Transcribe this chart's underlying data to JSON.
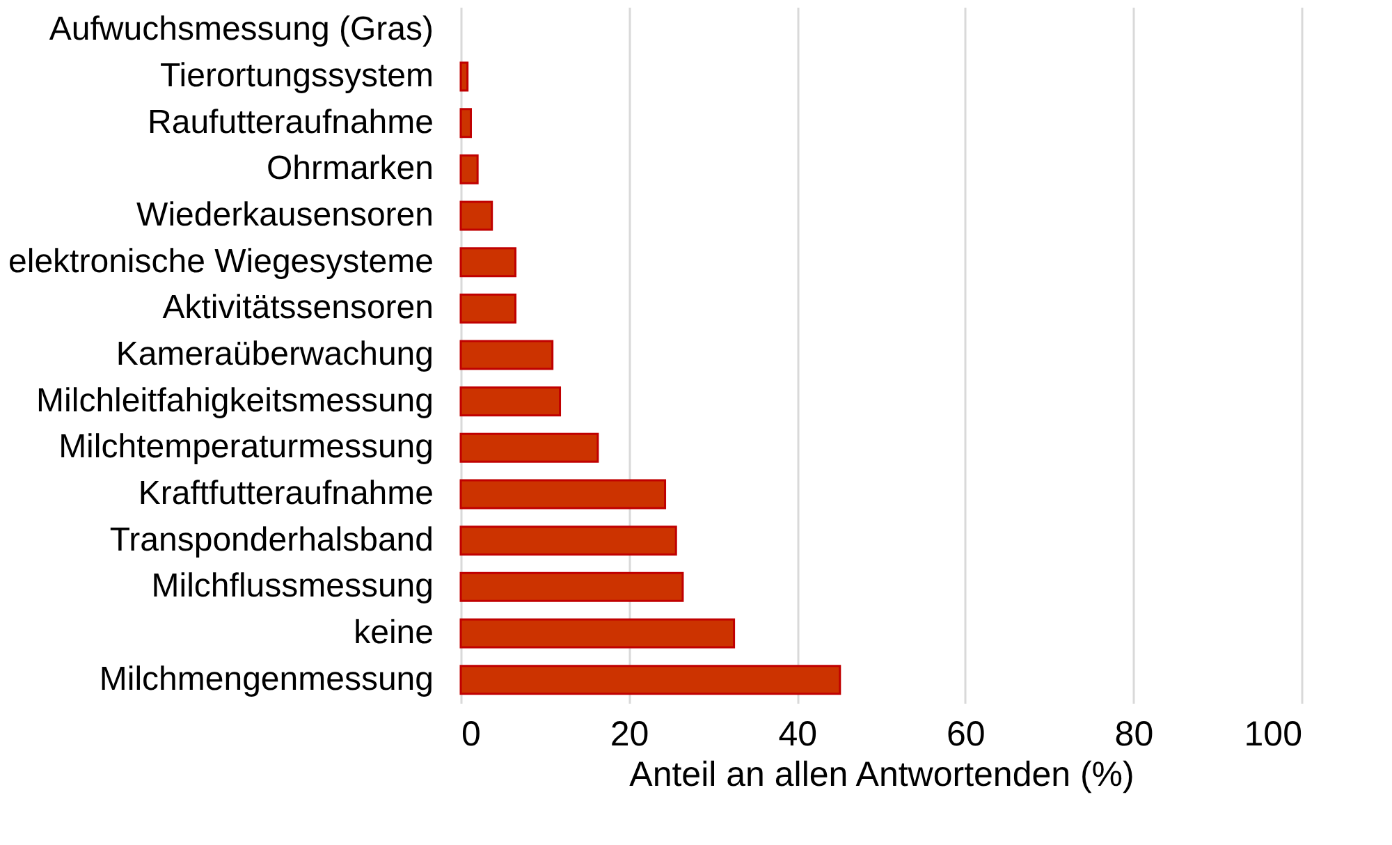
{
  "chart_data": {
    "type": "bar",
    "orientation": "horizontal",
    "xlabel": "Anteil an allen Antwortenden (%)",
    "categories": [
      "Aufwuchsmessung (Gras)",
      "Tierortungssystem",
      "Raufutteraufnahme",
      "Ohrmarken ",
      "Wiederkausensoren",
      "elektronische Wiegesysteme",
      "Aktivitätssensoren",
      "Kameraüberwachung",
      "Milchleitfahigkeitsmessung",
      "Milchtemperaturmessung",
      "Kraftfutteraufnahme",
      "Transponderhalsband",
      "Milchflussmessung",
      "keine",
      "Milchmengenmessung"
    ],
    "values": [
      0,
      0.8,
      1.2,
      2.0,
      3.7,
      6.5,
      6.5,
      10.9,
      11.8,
      16.3,
      24.3,
      25.6,
      26.4,
      32.5,
      45.1
    ],
    "color": "#cc3300",
    "xlim": [
      0,
      100
    ],
    "xticks": [
      0,
      20,
      40,
      60,
      80,
      100
    ],
    "grid": "x"
  }
}
